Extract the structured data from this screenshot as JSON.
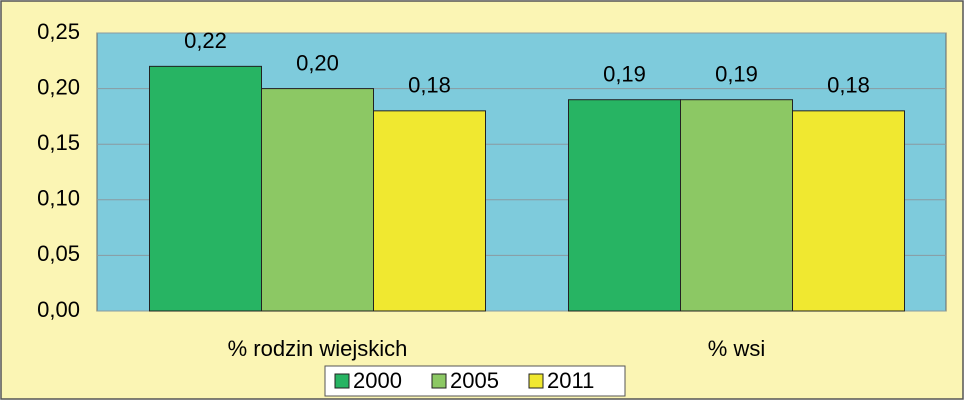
{
  "chart_data": {
    "type": "bar",
    "categories": [
      "% rodzin wiejskich",
      "% wsi"
    ],
    "series": [
      {
        "name": "2000",
        "color": "#27b463",
        "values": [
          0.22,
          0.19
        ],
        "value_labels": [
          "0,22",
          "0,19"
        ]
      },
      {
        "name": "2005",
        "color": "#8cc864",
        "values": [
          0.2,
          0.19
        ],
        "value_labels": [
          "0,20",
          "0,19"
        ]
      },
      {
        "name": "2011",
        "color": "#f0e830",
        "values": [
          0.18,
          0.18
        ],
        "value_labels": [
          "0,18",
          "0,18"
        ]
      }
    ],
    "ylim": [
      0,
      0.25
    ],
    "yticks": [
      {
        "value": 0,
        "label": "0,00"
      },
      {
        "value": 0.05,
        "label": "0,05"
      },
      {
        "value": 0.1,
        "label": "0,10"
      },
      {
        "value": 0.15,
        "label": "0,15"
      },
      {
        "value": 0.2,
        "label": "0,20"
      },
      {
        "value": 0.25,
        "label": "0,25"
      }
    ],
    "grid": true,
    "legend": "bottom"
  }
}
